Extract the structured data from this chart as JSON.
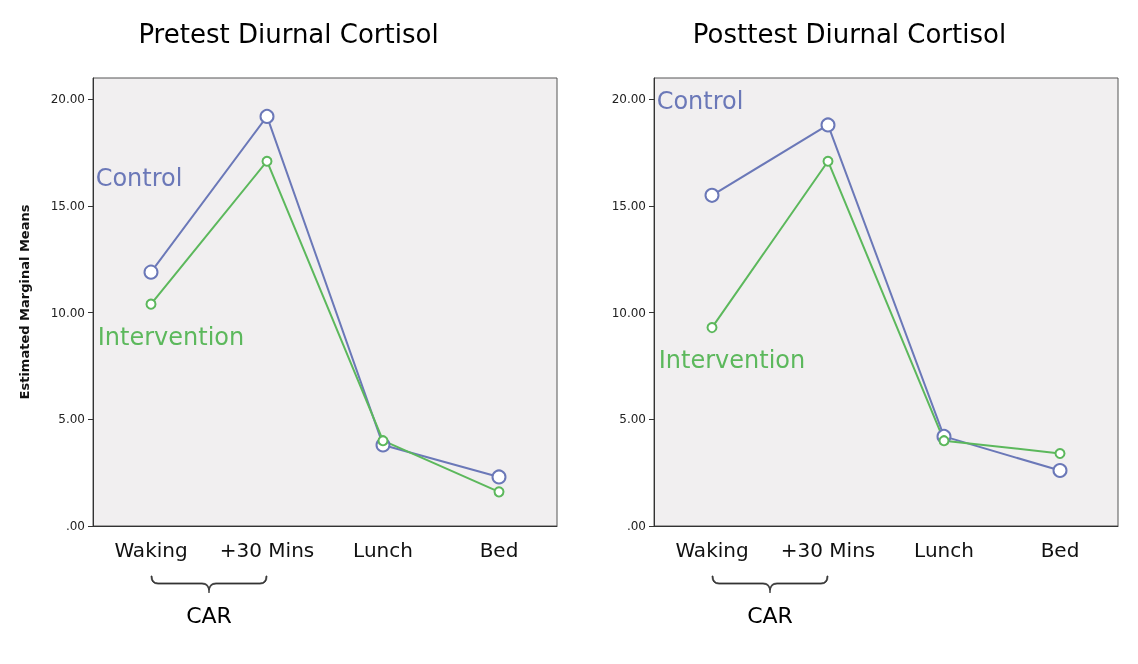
{
  "chart_data": [
    {
      "type": "line",
      "title": "Pretest Diurnal Cortisol",
      "ylabel": "Estimated Marginal Means",
      "categories": [
        "Waking",
        "+30 Mins",
        "Lunch",
        "Bed"
      ],
      "series": [
        {
          "name": "Control",
          "color": "#6b78b8",
          "values": [
            11.9,
            19.2,
            3.8,
            2.3
          ]
        },
        {
          "name": "Intervention",
          "color": "#5cb85c",
          "values": [
            10.4,
            17.1,
            4.0,
            1.6
          ]
        }
      ],
      "ylim": [
        0,
        21
      ],
      "yticks": [
        {
          "value": 0,
          "label": ".00"
        },
        {
          "value": 5,
          "label": "5.00"
        },
        {
          "value": 10,
          "label": "10.00"
        },
        {
          "value": 15,
          "label": "15.00"
        },
        {
          "value": 20,
          "label": "20.00"
        }
      ],
      "grid": false,
      "marker": "circle",
      "line_style": "solid",
      "annotations": [
        "CAR"
      ]
    },
    {
      "type": "line",
      "title": "Posttest Diurnal Cortisol",
      "categories": [
        "Waking",
        "+30 Mins",
        "Lunch",
        "Bed"
      ],
      "series": [
        {
          "name": "Control",
          "color": "#6b78b8",
          "values": [
            15.5,
            18.8,
            4.2,
            2.6
          ]
        },
        {
          "name": "Intervention",
          "color": "#5cb85c",
          "values": [
            9.3,
            17.1,
            4.0,
            3.4
          ]
        }
      ],
      "ylim": [
        0,
        21
      ],
      "yticks": [
        {
          "value": 0,
          "label": ".00"
        },
        {
          "value": 5,
          "label": "5.00"
        },
        {
          "value": 10,
          "label": "10.00"
        },
        {
          "value": 15,
          "label": "15.00"
        },
        {
          "value": 20,
          "label": "20.00"
        }
      ],
      "grid": false,
      "marker": "circle",
      "line_style": "solid",
      "annotations": [
        "CAR"
      ]
    }
  ]
}
